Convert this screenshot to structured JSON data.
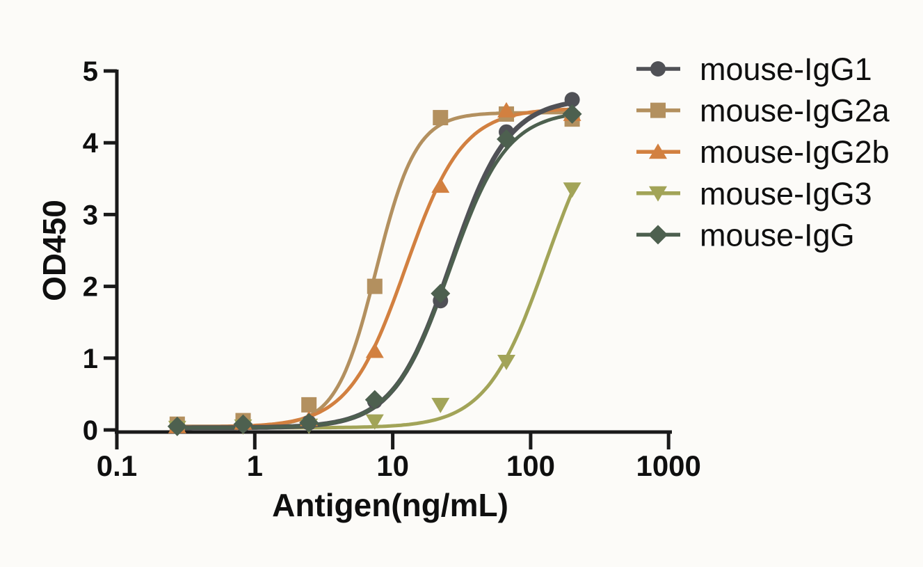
{
  "figure": {
    "background": "#fcfbf8",
    "axis_color": "#1a1a1a",
    "text_color": "#0f0f0f"
  },
  "chart_data": {
    "type": "line",
    "title": "",
    "xlabel": "Antigen(ng/mL)",
    "ylabel": "OD450",
    "x_scale": "log",
    "xlim": [
      0.1,
      1000
    ],
    "ylim": [
      0,
      5
    ],
    "x_tick_labels": [
      "0.1",
      "1",
      "10",
      "100",
      "1000"
    ],
    "x_tick_values": [
      0.1,
      1,
      10,
      100,
      1000
    ],
    "y_tick_labels": [
      "0",
      "1",
      "2",
      "3",
      "4",
      "5"
    ],
    "y_tick_values": [
      0,
      1,
      2,
      3,
      4,
      5
    ],
    "grid": false,
    "legend_position": "right",
    "x": [
      0.274,
      0.823,
      2.47,
      7.41,
      22.2,
      66.7,
      200
    ],
    "series": [
      {
        "name": "mouse-IgG1",
        "color": "#505156",
        "marker": "circle",
        "values": [
          0.05,
          0.08,
          0.1,
          0.4,
          1.8,
          4.15,
          4.6
        ],
        "fit": {
          "bottom": 0.03,
          "top": 4.62,
          "ec50": 26.5,
          "hill": 2.1
        }
      },
      {
        "name": "mouse-IgG2a",
        "color": "#b3905f",
        "marker": "square",
        "values": [
          0.08,
          0.13,
          0.35,
          2.0,
          4.35,
          4.4,
          4.33
        ],
        "fit": {
          "bottom": 0.05,
          "top": 4.42,
          "ec50": 7.6,
          "hill": 3.0
        }
      },
      {
        "name": "mouse-IgG2b",
        "color": "#d28040",
        "marker": "triangle-up",
        "values": [
          0.05,
          0.1,
          0.15,
          1.1,
          3.4,
          4.45,
          4.4
        ],
        "fit": {
          "bottom": 0.04,
          "top": 4.48,
          "ec50": 12.4,
          "hill": 2.1
        }
      },
      {
        "name": "mouse-IgG3",
        "color": "#a2a458",
        "marker": "triangle-down",
        "values": [
          0.03,
          0.05,
          0.06,
          0.12,
          0.35,
          0.95,
          3.35
        ],
        "fit": {
          "bottom": 0.03,
          "top": 4.7,
          "ec50": 130,
          "hill": 2.0
        }
      },
      {
        "name": "mouse-IgG",
        "color": "#4d604f",
        "marker": "diamond",
        "values": [
          0.05,
          0.08,
          0.1,
          0.42,
          1.9,
          4.05,
          4.4
        ],
        "fit": {
          "bottom": 0.03,
          "top": 4.45,
          "ec50": 26.0,
          "hill": 2.1
        }
      }
    ]
  }
}
